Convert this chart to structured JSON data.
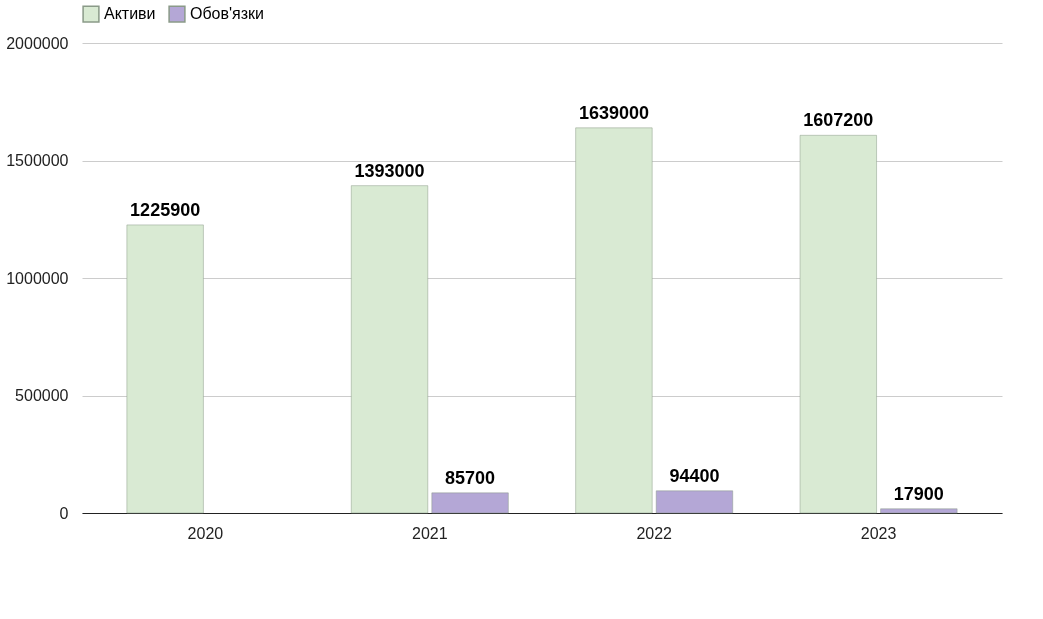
{
  "chart_data": {
    "type": "bar",
    "categories": [
      "2020",
      "2021",
      "2022",
      "2023"
    ],
    "series": [
      {
        "name": "Активи",
        "color": "#d9ead3",
        "values": [
          1225900,
          1393000,
          1639000,
          1607200
        ]
      },
      {
        "name": "Обов'язки",
        "color": "#b4a7d6",
        "values": [
          null,
          85700,
          94400,
          17900
        ]
      }
    ],
    "ylim": [
      0,
      2000000
    ],
    "yticks": [
      0,
      500000,
      1000000,
      1500000,
      2000000
    ],
    "grid": "y",
    "legend": "top",
    "data_labels": true
  }
}
